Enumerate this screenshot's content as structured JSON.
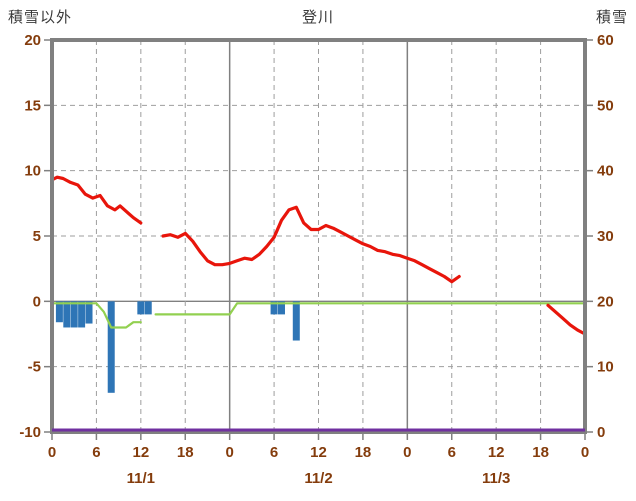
{
  "header": {
    "left_axis_title": "積雪以外",
    "title": "登川",
    "right_axis_title": "積雪"
  },
  "colors": {
    "red": "#e8150b",
    "blue": "#2e75b6",
    "green": "#92d050",
    "purple": "#7030a0",
    "grid": "#808080",
    "dash": "#9e9e9e",
    "tick_label": "#843c0c",
    "title": "#3a3a3a"
  },
  "chart_data": {
    "type": "line",
    "title": "登川",
    "left_axis": {
      "title": "積雪以外",
      "min": -10,
      "max": 20,
      "tick_step": 5,
      "ticks": [
        20,
        15,
        10,
        5,
        0,
        -5,
        -10
      ]
    },
    "right_axis": {
      "title": "積雪",
      "min": 0,
      "max": 60,
      "tick_step": 10,
      "ticks": [
        60,
        50,
        40,
        30,
        20,
        10,
        0
      ]
    },
    "x_axis": {
      "min": 0,
      "max": 72,
      "tick_step": 6,
      "tick_labels": [
        "0",
        "6",
        "12",
        "18",
        "0",
        "6",
        "12",
        "18",
        "0",
        "6",
        "12",
        "18",
        "0"
      ],
      "day_labels": [
        {
          "label": "11/1",
          "center_hour": 12
        },
        {
          "label": "11/2",
          "center_hour": 36
        },
        {
          "label": "11/3",
          "center_hour": 60
        }
      ]
    },
    "series": [
      {
        "name": "precipitation-bars",
        "type": "bar",
        "axis": "left",
        "color_key": "blue",
        "points": [
          [
            1,
            -1.6
          ],
          [
            2,
            -2.0
          ],
          [
            3,
            -2.0
          ],
          [
            4,
            -2.0
          ],
          [
            5,
            -1.7
          ],
          [
            8,
            -7.0
          ],
          [
            12,
            -1.0
          ],
          [
            13,
            -1.0
          ],
          [
            30,
            -1.0
          ],
          [
            31,
            -1.0
          ],
          [
            33,
            -3.0
          ]
        ]
      },
      {
        "name": "green-line",
        "type": "line",
        "axis": "left",
        "color_key": "green",
        "width": 2.2,
        "segments": [
          [
            [
              0,
              -0.15
            ],
            [
              6,
              -0.15
            ],
            [
              7,
              -0.8
            ],
            [
              8,
              -2.0
            ],
            [
              10,
              -2.0
            ],
            [
              11,
              -1.6
            ],
            [
              12,
              -1.6
            ]
          ],
          [
            [
              14,
              -1.0
            ],
            [
              24,
              -1.0
            ],
            [
              25,
              -0.15
            ],
            [
              72,
              -0.15
            ]
          ]
        ]
      },
      {
        "name": "temperature-line",
        "type": "line",
        "axis": "left",
        "color_key": "red",
        "width": 3.2,
        "segments": [
          [
            [
              0,
              9.3
            ],
            [
              0.7,
              9.5
            ],
            [
              1.5,
              9.4
            ],
            [
              2.5,
              9.1
            ],
            [
              3.5,
              8.9
            ],
            [
              4.5,
              8.2
            ],
            [
              5.5,
              7.9
            ],
            [
              6.5,
              8.1
            ],
            [
              7.5,
              7.3
            ],
            [
              8.5,
              7.0
            ],
            [
              9.2,
              7.3
            ],
            [
              10,
              6.9
            ],
            [
              11,
              6.4
            ],
            [
              12,
              6.0
            ]
          ],
          [
            [
              15,
              5.0
            ],
            [
              16,
              5.1
            ],
            [
              17,
              4.9
            ],
            [
              18,
              5.2
            ],
            [
              19,
              4.6
            ],
            [
              20,
              3.8
            ],
            [
              21,
              3.1
            ],
            [
              22,
              2.8
            ],
            [
              23,
              2.8
            ],
            [
              24,
              2.9
            ],
            [
              25,
              3.1
            ],
            [
              26,
              3.3
            ],
            [
              27,
              3.2
            ],
            [
              28,
              3.6
            ],
            [
              29,
              4.2
            ],
            [
              30,
              4.9
            ],
            [
              31,
              6.2
            ],
            [
              32,
              7.0
            ],
            [
              33,
              7.2
            ],
            [
              34,
              6.0
            ],
            [
              35,
              5.5
            ],
            [
              36,
              5.5
            ],
            [
              37,
              5.8
            ],
            [
              38,
              5.6
            ],
            [
              39,
              5.3
            ],
            [
              40,
              5.0
            ],
            [
              41,
              4.7
            ],
            [
              42,
              4.4
            ],
            [
              43,
              4.2
            ],
            [
              44,
              3.9
            ],
            [
              45,
              3.8
            ],
            [
              46,
              3.6
            ],
            [
              47,
              3.5
            ],
            [
              48,
              3.3
            ],
            [
              49,
              3.1
            ],
            [
              50,
              2.8
            ],
            [
              51,
              2.5
            ],
            [
              52,
              2.2
            ],
            [
              53,
              1.9
            ],
            [
              54,
              1.5
            ],
            [
              55,
              1.9
            ]
          ],
          [
            [
              67,
              -0.3
            ],
            [
              68,
              -0.8
            ],
            [
              69,
              -1.3
            ],
            [
              70,
              -1.8
            ],
            [
              71,
              -2.2
            ],
            [
              72,
              -2.5
            ]
          ]
        ]
      },
      {
        "name": "snow-depth-line",
        "type": "line",
        "axis": "right",
        "color_key": "purple",
        "width": 3,
        "segments": [
          [
            [
              0,
              0
            ],
            [
              72,
              0
            ]
          ]
        ]
      }
    ]
  }
}
